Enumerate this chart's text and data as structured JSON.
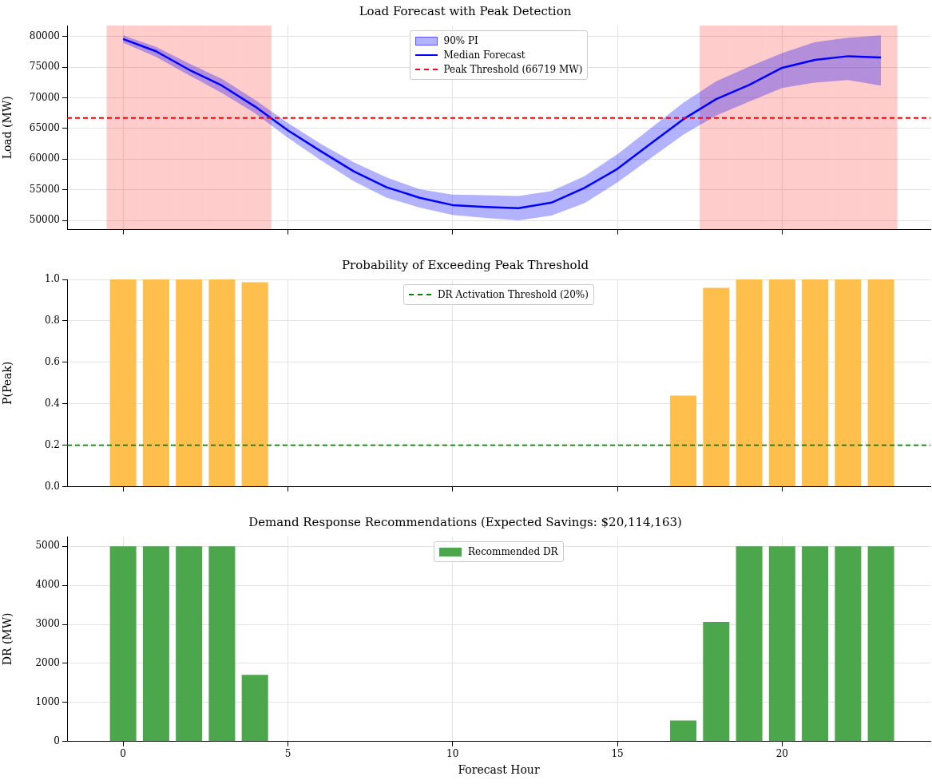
{
  "chart_data": [
    {
      "type": "line",
      "title": "Load Forecast with Peak Detection",
      "ylabel": "Load (MW)",
      "x": [
        0,
        1,
        2,
        3,
        4,
        5,
        6,
        7,
        8,
        9,
        10,
        11,
        12,
        13,
        14,
        15,
        16,
        17,
        18,
        19,
        20,
        21,
        22,
        23
      ],
      "series": [
        {
          "name": "Median Forecast",
          "color": "#0000ff",
          "values": [
            79600,
            77600,
            74600,
            72000,
            68600,
            64700,
            61300,
            58000,
            55400,
            53700,
            52500,
            52200,
            52000,
            52900,
            55300,
            58400,
            62500,
            66500,
            69800,
            72100,
            74900,
            76200,
            76800,
            76600
          ],
          "lower": [
            79000,
            76700,
            73700,
            70800,
            67500,
            63500,
            59800,
            56400,
            53700,
            52100,
            50900,
            50400,
            50000,
            50800,
            52800,
            56200,
            60100,
            64000,
            67100,
            69400,
            71600,
            72500,
            72900,
            72000
          ],
          "upper": [
            80200,
            78300,
            75600,
            73100,
            69700,
            65900,
            62500,
            59500,
            57000,
            55100,
            54200,
            54100,
            54000,
            54800,
            57200,
            60800,
            65000,
            69200,
            72700,
            75100,
            77300,
            79100,
            79800,
            80200
          ]
        }
      ],
      "ref_lines": [
        {
          "axis": "y",
          "value": 66719,
          "label": "Peak Threshold (66719 MW)",
          "color": "#ff0000",
          "line_style": "dashed"
        }
      ],
      "bands": [
        {
          "axis": "x",
          "from": -0.5,
          "to": 0.5,
          "color": "#ff0000"
        },
        {
          "axis": "x",
          "from": 0.5,
          "to": 1.5,
          "color": "#ff0000"
        },
        {
          "axis": "x",
          "from": 1.5,
          "to": 2.5,
          "color": "#ff0000"
        },
        {
          "axis": "x",
          "from": 2.5,
          "to": 3.5,
          "color": "#ff0000"
        },
        {
          "axis": "x",
          "from": 3.5,
          "to": 4.5,
          "color": "#ff0000"
        },
        {
          "axis": "x",
          "from": 17.5,
          "to": 18.5,
          "color": "#ff0000"
        },
        {
          "axis": "x",
          "from": 18.5,
          "to": 19.5,
          "color": "#ff0000"
        },
        {
          "axis": "x",
          "from": 19.5,
          "to": 20.5,
          "color": "#ff0000"
        },
        {
          "axis": "x",
          "from": 20.5,
          "to": 21.5,
          "color": "#ff0000"
        },
        {
          "axis": "x",
          "from": 21.5,
          "to": 22.5,
          "color": "#ff0000"
        },
        {
          "axis": "x",
          "from": 22.5,
          "to": 23.5,
          "color": "#ff0000"
        }
      ],
      "annotations": [
        "90% PI"
      ],
      "xlim": [
        -1.7,
        24.5
      ],
      "xticks": [
        0,
        5,
        10,
        15,
        20
      ],
      "ylim": [
        48500,
        81800
      ],
      "yticks": [
        50000,
        55000,
        60000,
        65000,
        70000,
        75000,
        80000
      ],
      "grid": true,
      "legend": "top",
      "tick_labels": "y"
    },
    {
      "type": "bar",
      "title": "Probability of Exceeding Peak Threshold",
      "ylabel": "P(Peak)",
      "x": [
        0,
        1,
        2,
        3,
        4,
        5,
        6,
        7,
        8,
        9,
        10,
        11,
        12,
        13,
        14,
        15,
        16,
        17,
        18,
        19,
        20,
        21,
        22,
        23
      ],
      "series": [
        {
          "color": "#ffbf4d",
          "values": [
            1,
            1,
            1,
            1,
            0.987,
            0,
            0,
            0,
            0,
            0,
            0,
            0,
            0,
            0,
            0,
            0,
            0,
            0.44,
            0.96,
            1,
            1,
            1,
            1,
            1
          ]
        }
      ],
      "ref_lines": [
        {
          "axis": "y",
          "value": 0.2,
          "label": "DR Activation Threshold (20%)",
          "color": "#008000",
          "line_style": "dashed"
        }
      ],
      "xlim": [
        -1.7,
        24.5
      ],
      "xticks": [
        0,
        5,
        10,
        15,
        20
      ],
      "ylim": [
        0,
        1
      ],
      "yticks": [
        {
          "value": 0,
          "label": "0.0"
        },
        0.2,
        0.4,
        0.6,
        0.8,
        {
          "value": 1,
          "label": "1.0"
        }
      ],
      "grid": true,
      "legend": "top",
      "tick_labels": "y"
    },
    {
      "type": "bar",
      "title": "Demand Response Recommendations (Expected Savings: $20,114,163)",
      "xlabel": "Forecast Hour",
      "ylabel": "DR (MW)",
      "x": [
        0,
        1,
        2,
        3,
        4,
        5,
        6,
        7,
        8,
        9,
        10,
        11,
        12,
        13,
        14,
        15,
        16,
        17,
        18,
        19,
        20,
        21,
        22,
        23
      ],
      "series": [
        {
          "name": "Recommended DR",
          "color": "#4ca64c",
          "values": [
            5000,
            5000,
            5000,
            5000,
            1710,
            0,
            0,
            0,
            0,
            0,
            0,
            0,
            0,
            0,
            0,
            0,
            0,
            540,
            3060,
            5000,
            5000,
            5000,
            5000,
            5000
          ]
        }
      ],
      "xlim": [
        -1.7,
        24.5
      ],
      "xticks": [
        0,
        5,
        10,
        15,
        20
      ],
      "ylim": [
        0,
        5250
      ],
      "yticks": [
        0,
        1000,
        2000,
        3000,
        4000,
        5000
      ],
      "grid": true,
      "legend": "top"
    }
  ]
}
